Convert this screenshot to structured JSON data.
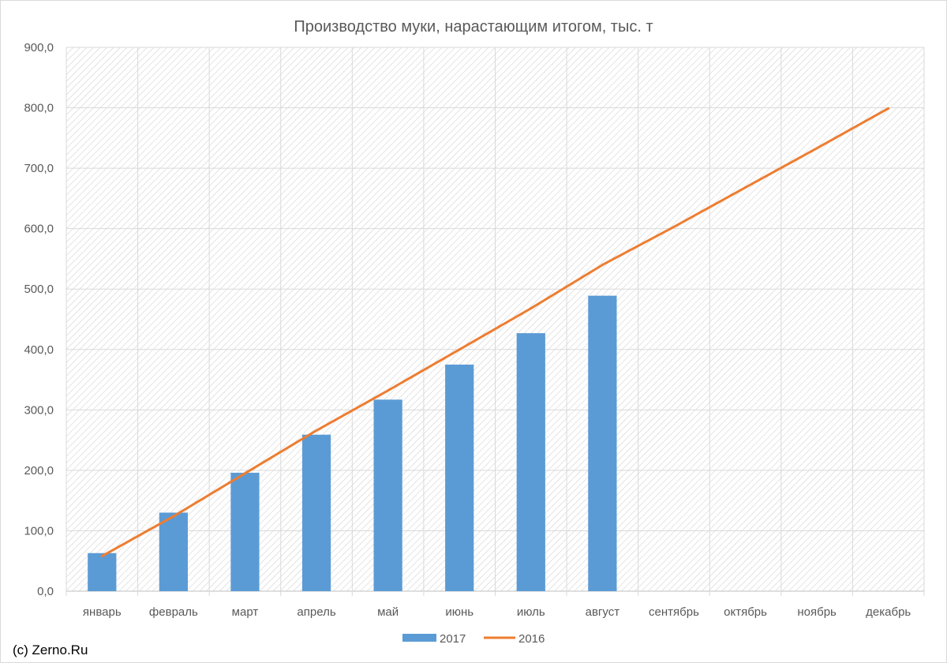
{
  "chart_data": {
    "type": "bar",
    "title": "Производство муки, нарастающим итогом, тыс. т",
    "xlabel": "",
    "ylabel": "",
    "categories": [
      "январь",
      "февраль",
      "март",
      "апрель",
      "май",
      "июнь",
      "июль",
      "август",
      "сентябрь",
      "октябрь",
      "ноябрь",
      "декабрь"
    ],
    "series": [
      {
        "name": "2017",
        "type": "bar",
        "color": "#5b9bd5",
        "values": [
          63,
          130,
          196,
          259,
          317,
          375,
          427,
          489,
          null,
          null,
          null,
          null
        ]
      },
      {
        "name": "2016",
        "type": "line",
        "color": "#ed7d31",
        "values": [
          58,
          124,
          195,
          266,
          332,
          400,
          468,
          540,
          603,
          668,
          733,
          799
        ]
      }
    ],
    "ylim": [
      0,
      900
    ],
    "yticks": [
      "0,0",
      "100,0",
      "200,0",
      "300,0",
      "400,0",
      "500,0",
      "600,0",
      "700,0",
      "800,0",
      "900,0"
    ],
    "grid": true,
    "legend_position": "bottom",
    "plot_pattern": "diagonal-hatch"
  },
  "footer": {
    "copyright": "(c) Zerno.Ru"
  }
}
